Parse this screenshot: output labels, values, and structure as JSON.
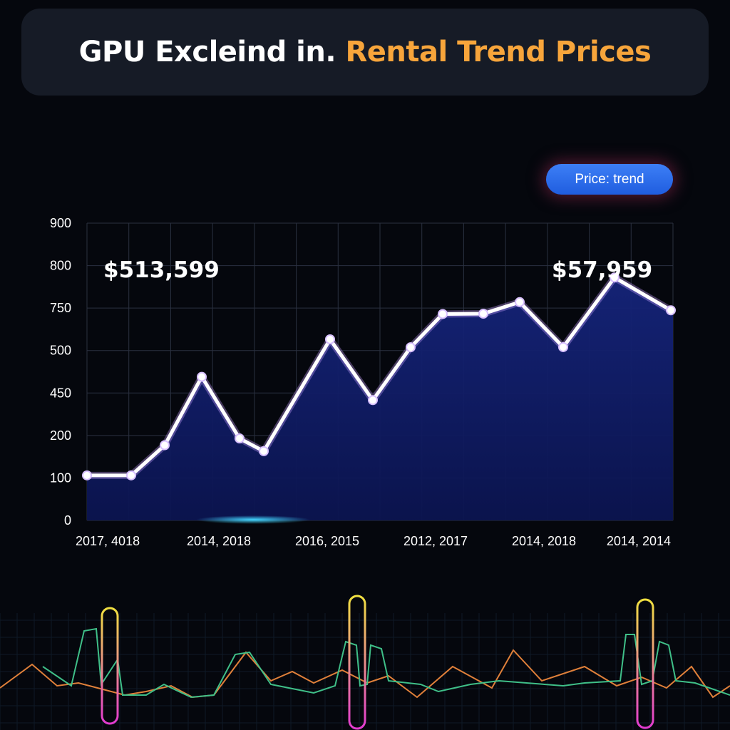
{
  "title": {
    "part1": "GPU Excleind in.",
    "part2": "Rental Trend Prices"
  },
  "legend": {
    "label": "Price: trend"
  },
  "callouts": [
    "$513,599",
    "$57,959"
  ],
  "colors": {
    "background": "#05070d",
    "title_panel": "#161b26",
    "title_accent": "#f7a53b",
    "line": "#ffffff",
    "area_fill": "#0f1d66",
    "legend_pill": "#2f6ff0"
  },
  "chart_data": {
    "type": "area",
    "title": "GPU Excleind in. Rental Trend Prices",
    "y_ticks": [
      "0",
      "100",
      "200",
      "450",
      "500",
      "750",
      "800",
      "900"
    ],
    "x_ticks": [
      "2017, 4018",
      "2014, 2018",
      "2016, 2015",
      "2012, 2017",
      "2014, 2018",
      "2014, 2014"
    ],
    "series": [
      {
        "name": "Price: trend",
        "values": [
          106,
          106,
          177,
          469,
          193,
          163,
          566,
          408,
          519,
          715,
          717,
          757,
          520,
          786,
          737
        ]
      }
    ],
    "grid": true,
    "legend_position": "top-right"
  }
}
